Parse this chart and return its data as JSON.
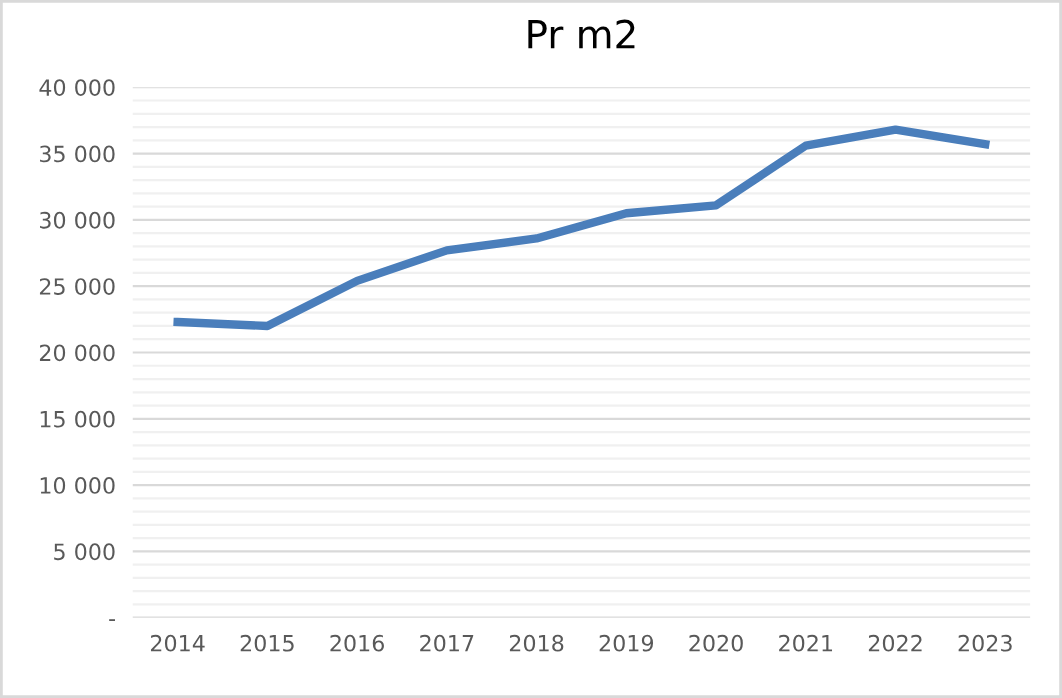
{
  "chart_data": {
    "type": "line",
    "title": "Pr m2",
    "categories": [
      "2014",
      "2015",
      "2016",
      "2017",
      "2018",
      "2019",
      "2020",
      "2021",
      "2022",
      "2023"
    ],
    "series": [
      {
        "color": "#4a7ebb",
        "values": [
          22300,
          22000,
          25400,
          27700,
          28600,
          30500,
          31100,
          35600,
          36800,
          35700
        ]
      }
    ],
    "ylim": [
      0,
      40000
    ],
    "yticks": [
      {
        "value": 0,
        "label": "-"
      },
      {
        "value": 1000,
        "label": null
      },
      {
        "value": 2000,
        "label": null
      },
      {
        "value": 3000,
        "label": null
      },
      {
        "value": 4000,
        "label": null
      },
      {
        "value": 5000,
        "label": "5 000"
      },
      {
        "value": 6000,
        "label": null
      },
      {
        "value": 7000,
        "label": null
      },
      {
        "value": 8000,
        "label": null
      },
      {
        "value": 9000,
        "label": null
      },
      {
        "value": 10000,
        "label": "10 000"
      },
      {
        "value": 11000,
        "label": null
      },
      {
        "value": 12000,
        "label": null
      },
      {
        "value": 13000,
        "label": null
      },
      {
        "value": 14000,
        "label": null
      },
      {
        "value": 15000,
        "label": "15 000"
      },
      {
        "value": 16000,
        "label": null
      },
      {
        "value": 17000,
        "label": null
      },
      {
        "value": 18000,
        "label": null
      },
      {
        "value": 19000,
        "label": null
      },
      {
        "value": 20000,
        "label": "20 000"
      },
      {
        "value": 21000,
        "label": null
      },
      {
        "value": 22000,
        "label": null
      },
      {
        "value": 23000,
        "label": null
      },
      {
        "value": 24000,
        "label": null
      },
      {
        "value": 25000,
        "label": "25 000"
      },
      {
        "value": 26000,
        "label": null
      },
      {
        "value": 27000,
        "label": null
      },
      {
        "value": 28000,
        "label": null
      },
      {
        "value": 29000,
        "label": null
      },
      {
        "value": 30000,
        "label": "30 000"
      },
      {
        "value": 31000,
        "label": null
      },
      {
        "value": 32000,
        "label": null
      },
      {
        "value": 33000,
        "label": null
      },
      {
        "value": 34000,
        "label": null
      },
      {
        "value": 35000,
        "label": "35 000"
      },
      {
        "value": 36000,
        "label": null
      },
      {
        "value": 37000,
        "label": null
      },
      {
        "value": 38000,
        "label": null
      },
      {
        "value": 39000,
        "label": null
      },
      {
        "value": 40000,
        "label": "40 000"
      }
    ],
    "grid": "y",
    "marker": "none",
    "line_style": "solid"
  }
}
